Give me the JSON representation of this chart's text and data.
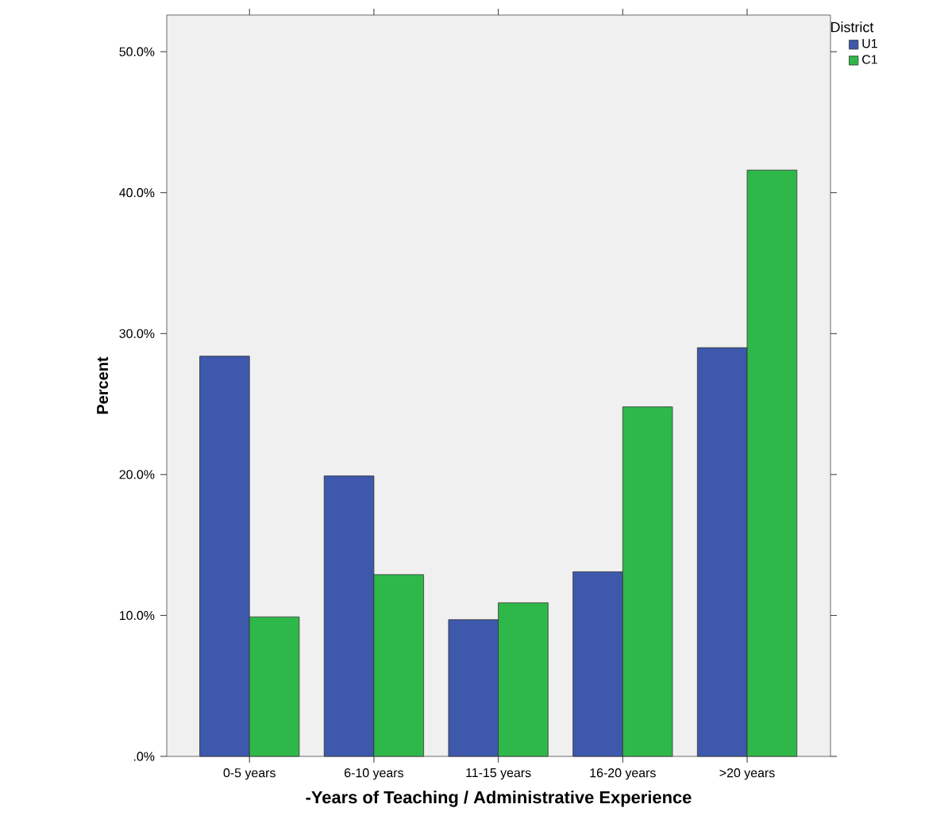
{
  "chart_data": {
    "type": "bar",
    "xlabel": "-Years of Teaching / Administrative Experience",
    "ylabel": "Percent",
    "legend_title": "District",
    "legend": "right",
    "categories": [
      "0-5 years",
      "6-10 years",
      "11-15 years",
      "16-20 years",
      ">20 years"
    ],
    "series": [
      {
        "name": "U1",
        "color": "#3e58ac",
        "values": [
          28.4,
          19.9,
          9.7,
          13.1,
          29.0
        ]
      },
      {
        "name": "C1",
        "color": "#2fb84a",
        "values": [
          9.9,
          12.9,
          10.9,
          24.8,
          41.6
        ]
      }
    ],
    "ylim": [
      0,
      52.6
    ],
    "yticks": [
      {
        "value": 0,
        "label": ".0%"
      },
      {
        "value": 10,
        "label": "10.0%"
      },
      {
        "value": 20,
        "label": "20.0%"
      },
      {
        "value": 30,
        "label": "30.0%"
      },
      {
        "value": 40,
        "label": "40.0%"
      },
      {
        "value": 50,
        "label": "50.0%"
      }
    ]
  }
}
